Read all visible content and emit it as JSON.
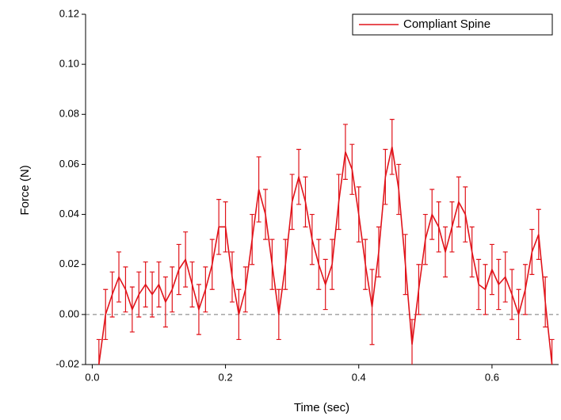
{
  "chart_data": {
    "type": "line",
    "x_label": "Time (sec)",
    "y_label": "Force (N)",
    "x": [
      0.01,
      0.02,
      0.03,
      0.04,
      0.05,
      0.06,
      0.07,
      0.08,
      0.09,
      0.1,
      0.11,
      0.12,
      0.13,
      0.14,
      0.15,
      0.16,
      0.17,
      0.18,
      0.19,
      0.2,
      0.21,
      0.22,
      0.23,
      0.24,
      0.25,
      0.26,
      0.27,
      0.28,
      0.29,
      0.3,
      0.31,
      0.32,
      0.33,
      0.34,
      0.35,
      0.36,
      0.37,
      0.38,
      0.39,
      0.4,
      0.41,
      0.42,
      0.43,
      0.44,
      0.45,
      0.46,
      0.47,
      0.48,
      0.49,
      0.5,
      0.51,
      0.52,
      0.53,
      0.54,
      0.55,
      0.56,
      0.57,
      0.58,
      0.59,
      0.6,
      0.61,
      0.62,
      0.63,
      0.64,
      0.65,
      0.66,
      0.67,
      0.68,
      0.69
    ],
    "series": [
      {
        "name": "Compliant Spine",
        "color": "#e0131a",
        "values": [
          -0.02,
          0.0,
          0.008,
          0.015,
          0.01,
          0.002,
          0.008,
          0.012,
          0.008,
          0.012,
          0.005,
          0.01,
          0.018,
          0.022,
          0.012,
          0.002,
          0.01,
          0.02,
          0.035,
          0.035,
          0.015,
          0.0,
          0.01,
          0.03,
          0.05,
          0.04,
          0.02,
          0.0,
          0.02,
          0.045,
          0.055,
          0.045,
          0.03,
          0.02,
          0.012,
          0.02,
          0.045,
          0.065,
          0.058,
          0.04,
          0.02,
          0.003,
          0.025,
          0.055,
          0.067,
          0.05,
          0.02,
          -0.012,
          0.01,
          0.03,
          0.04,
          0.035,
          0.025,
          0.035,
          0.045,
          0.04,
          0.025,
          0.012,
          0.01,
          0.018,
          0.012,
          0.015,
          0.008,
          0.0,
          0.01,
          0.025,
          0.032,
          0.005,
          -0.02
        ],
        "errors": [
          0.01,
          0.01,
          0.009,
          0.01,
          0.009,
          0.009,
          0.009,
          0.009,
          0.009,
          0.009,
          0.01,
          0.009,
          0.01,
          0.011,
          0.009,
          0.01,
          0.009,
          0.01,
          0.011,
          0.01,
          0.01,
          0.01,
          0.009,
          0.01,
          0.013,
          0.01,
          0.01,
          0.01,
          0.01,
          0.011,
          0.011,
          0.01,
          0.01,
          0.01,
          0.01,
          0.01,
          0.011,
          0.011,
          0.01,
          0.011,
          0.01,
          0.015,
          0.01,
          0.011,
          0.011,
          0.01,
          0.012,
          0.01,
          0.01,
          0.01,
          0.01,
          0.01,
          0.01,
          0.01,
          0.01,
          0.011,
          0.01,
          0.01,
          0.01,
          0.01,
          0.01,
          0.01,
          0.01,
          0.01,
          0.01,
          0.009,
          0.01,
          0.01,
          0.01
        ]
      }
    ],
    "xlim": [
      -0.01,
      0.7
    ],
    "ylim": [
      -0.02,
      0.12
    ],
    "xticks": [
      {
        "value": 0,
        "label": "0.0"
      },
      0.2,
      0.4,
      0.6
    ],
    "yticks": [
      -0.02,
      {
        "value": 0,
        "label": "0.00"
      },
      0.02,
      0.04,
      0.06,
      0.08,
      {
        "value": 0.1,
        "label": "0.10"
      },
      0.12
    ],
    "zero_line": true,
    "legend": "upper right"
  }
}
